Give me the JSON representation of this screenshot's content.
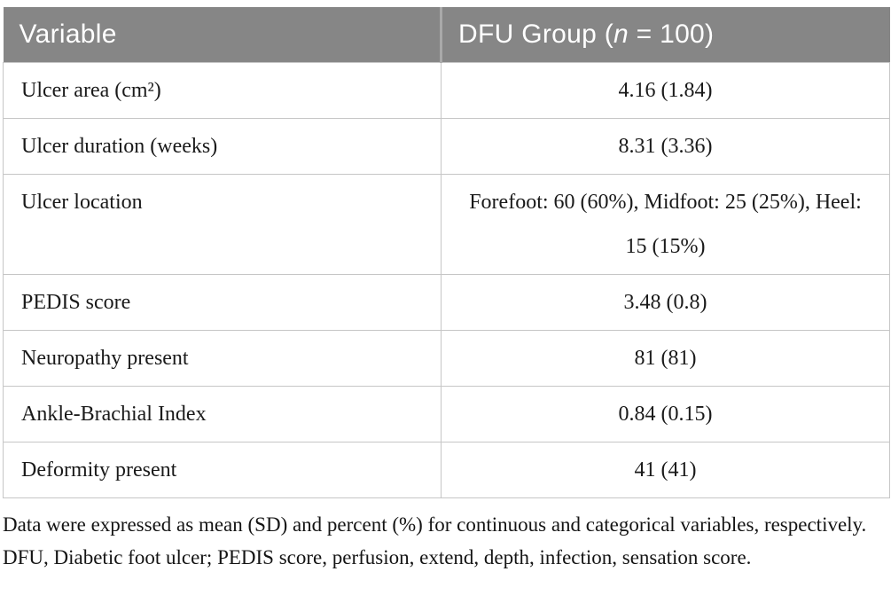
{
  "table": {
    "header": {
      "variable": "Variable",
      "group_prefix": "DFU Group (",
      "group_n": "n",
      "group_suffix": " = 100)"
    },
    "rows": [
      {
        "variable": "Ulcer area (cm²)",
        "value": "4.16 (1.84)"
      },
      {
        "variable": "Ulcer duration (weeks)",
        "value": "8.31 (3.36)"
      },
      {
        "variable": "Ulcer location",
        "value": "Forefoot: 60 (60%), Midfoot: 25 (25%), Heel: 15 (15%)"
      },
      {
        "variable": "PEDIS score",
        "value": "3.48 (0.8)"
      },
      {
        "variable": "Neuropathy present",
        "value": "81 (81)"
      },
      {
        "variable": "Ankle-Brachial Index",
        "value": "0.84 (0.15)"
      },
      {
        "variable": "Deformity present",
        "value": "41 (41)"
      }
    ]
  },
  "footnote": "Data were expressed as mean (SD) and percent (%) for continuous and categorical variables, respectively. DFU, Diabetic foot ulcer; PEDIS score, perfusion, extend, depth, infection, sensation score.",
  "colors": {
    "header_bg": "#868686",
    "header_text": "#ffffff",
    "header_divider": "#a9a9a9",
    "cell_border": "#c6c6c6",
    "body_text": "#1a1a1a"
  }
}
